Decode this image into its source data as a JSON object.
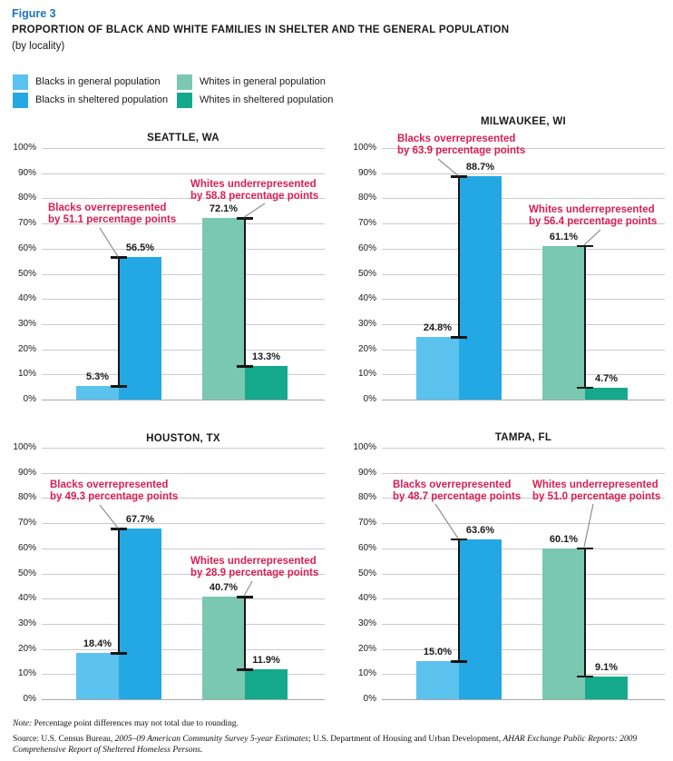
{
  "figure": {
    "label": "Figure 3",
    "title": "PROPORTION OF BLACK AND WHITE FAMILIES IN SHELTER AND THE GENERAL POPULATION",
    "subtitle": "(by locality)"
  },
  "colors": {
    "figure_label": "#1C75BC",
    "text": "#1A1A1A",
    "annotation": "#D91E52",
    "grid": "#CBCBCB",
    "axis": "#A8A8A8",
    "ibeam": "#161616",
    "connector": "#8F8F8F",
    "blacks_general": "#5BC2EE",
    "blacks_sheltered": "#23A8E4",
    "whites_general": "#7AC8B1",
    "whites_sheltered": "#15A98C"
  },
  "legend": {
    "items": [
      {
        "key": "blacks-general",
        "label": "Blacks in general population",
        "color": "#5BC2EE"
      },
      {
        "key": "blacks-sheltered",
        "label": "Blacks in sheltered population",
        "color": "#23A8E4"
      },
      {
        "key": "whites-general",
        "label": "Whites in general population",
        "color": "#7AC8B1"
      },
      {
        "key": "whites-sheltered",
        "label": "Whites in sheltered population",
        "color": "#15A98C"
      }
    ]
  },
  "chart_data": [
    {
      "type": "bar",
      "title": "SEATTLE, WA",
      "categories": [
        "Blacks in general population",
        "Blacks in sheltered population",
        "Whites in general population",
        "Whites in sheltered population"
      ],
      "values": [
        5.3,
        56.5,
        72.1,
        13.3
      ],
      "value_labels": [
        "5.3%",
        "56.5%",
        "72.1%",
        "13.3%"
      ],
      "ylim": [
        0,
        100
      ],
      "yticks": [
        "0%",
        "10%",
        "20%",
        "30%",
        "40%",
        "50%",
        "60%",
        "70%",
        "80%",
        "90%",
        "100%"
      ],
      "grid": true,
      "annotations": [
        {
          "lines": [
            "Blacks overrepresented",
            "by 51.1 percentage points"
          ],
          "diff_pp": 51.1
        },
        {
          "lines": [
            "Whites underrepresented",
            "by 58.8 percentage points"
          ],
          "diff_pp": 58.8
        }
      ]
    },
    {
      "type": "bar",
      "title": "MILWAUKEE, WI",
      "categories": [
        "Blacks in general population",
        "Blacks in sheltered population",
        "Whites in general population",
        "Whites in sheltered population"
      ],
      "values": [
        24.8,
        88.7,
        61.1,
        4.7
      ],
      "value_labels": [
        "24.8%",
        "88.7%",
        "61.1%",
        "4.7%"
      ],
      "ylim": [
        0,
        100
      ],
      "yticks": [
        "0%",
        "10%",
        "20%",
        "30%",
        "40%",
        "50%",
        "60%",
        "70%",
        "80%",
        "90%",
        "100%"
      ],
      "grid": true,
      "annotations": [
        {
          "lines": [
            "Blacks overrepresented",
            "by 63.9 percentage points"
          ],
          "diff_pp": 63.9
        },
        {
          "lines": [
            "Whites underrepresented",
            "by 56.4 percentage points"
          ],
          "diff_pp": 56.4
        }
      ]
    },
    {
      "type": "bar",
      "title": "HOUSTON, TX",
      "categories": [
        "Blacks in general population",
        "Blacks in sheltered population",
        "Whites in general population",
        "Whites in sheltered population"
      ],
      "values": [
        18.4,
        67.7,
        40.7,
        11.9
      ],
      "value_labels": [
        "18.4%",
        "67.7%",
        "40.7%",
        "11.9%"
      ],
      "ylim": [
        0,
        100
      ],
      "yticks": [
        "0%",
        "10%",
        "20%",
        "30%",
        "40%",
        "50%",
        "60%",
        "70%",
        "80%",
        "90%",
        "100%"
      ],
      "grid": true,
      "annotations": [
        {
          "lines": [
            "Blacks overrepresented",
            "by 49.3 percentage points"
          ],
          "diff_pp": 49.3
        },
        {
          "lines": [
            "Whites underrepresented",
            "by 28.9 percentage points"
          ],
          "diff_pp": 28.9
        }
      ]
    },
    {
      "type": "bar",
      "title": "TAMPA, FL",
      "categories": [
        "Blacks in general population",
        "Blacks in sheltered population",
        "Whites in general population",
        "Whites in sheltered population"
      ],
      "values": [
        15.0,
        63.6,
        60.1,
        9.1
      ],
      "value_labels": [
        "15.0%",
        "63.6%",
        "60.1%",
        "9.1%"
      ],
      "ylim": [
        0,
        100
      ],
      "yticks": [
        "0%",
        "10%",
        "20%",
        "30%",
        "40%",
        "50%",
        "60%",
        "70%",
        "80%",
        "90%",
        "100%"
      ],
      "grid": true,
      "annotations": [
        {
          "lines": [
            "Blacks overrepresented",
            "by 48.7 percentage points"
          ],
          "diff_pp": 48.7
        },
        {
          "lines": [
            "Whites underrepresented",
            "by 51.0 percentage points"
          ],
          "diff_pp": 51.0
        }
      ]
    }
  ],
  "footer": {
    "note_segments": [
      {
        "text": "Note:",
        "italic": true
      },
      {
        "text": " Percentage point differences may not total due to rounding.",
        "italic": false
      }
    ],
    "source_segments": [
      {
        "text": "Source: U.S. Census Bureau, ",
        "italic": false
      },
      {
        "text": "2005–09 American Community Survey 5-year Estimates",
        "italic": true
      },
      {
        "text": "; U.S. Department of Housing and Urban Development, ",
        "italic": false
      },
      {
        "text": "AHAR Exchange Public Reports: 2009 Comprehensive Report of Sheltered Homeless Persons.",
        "italic": true
      }
    ]
  }
}
